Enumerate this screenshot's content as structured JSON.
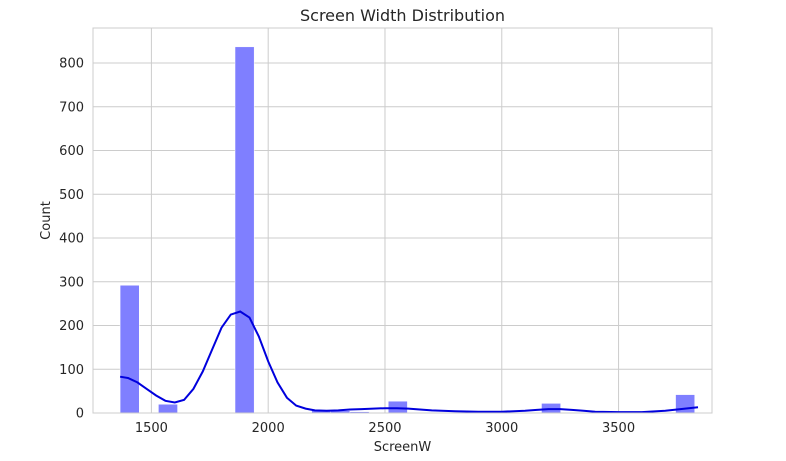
{
  "chart_data": {
    "type": "bar",
    "title": "Screen Width Distribution",
    "xlabel": "ScreenW",
    "ylabel": "Count",
    "xlim": [
      1250,
      3900
    ],
    "ylim": [
      0,
      880
    ],
    "xticks": [
      1500,
      2000,
      2500,
      3000,
      3500
    ],
    "yticks": [
      0,
      100,
      200,
      300,
      400,
      500,
      600,
      700,
      800
    ],
    "grid": true,
    "bar_color": "#7f7fff",
    "kde_color": "#0000dd",
    "bars": [
      {
        "x0": 1366,
        "x1": 1448,
        "count": 292
      },
      {
        "x0": 1530,
        "x1": 1612,
        "count": 20
      },
      {
        "x0": 1858,
        "x1": 1940,
        "count": 837
      },
      {
        "x0": 2186,
        "x1": 2268,
        "count": 6
      },
      {
        "x0": 2268,
        "x1": 2350,
        "count": 5
      },
      {
        "x0": 2350,
        "x1": 2432,
        "count": 3
      },
      {
        "x0": 2514,
        "x1": 2596,
        "count": 27
      },
      {
        "x0": 3170,
        "x1": 3252,
        "count": 22
      },
      {
        "x0": 3744,
        "x1": 3826,
        "count": 42
      }
    ],
    "kde": {
      "x": [
        1366,
        1400,
        1440,
        1480,
        1520,
        1560,
        1600,
        1640,
        1680,
        1720,
        1760,
        1800,
        1840,
        1880,
        1920,
        1960,
        2000,
        2040,
        2080,
        2120,
        2160,
        2200,
        2250,
        2300,
        2350,
        2400,
        2450,
        2500,
        2550,
        2600,
        2650,
        2700,
        2800,
        2900,
        3000,
        3100,
        3150,
        3200,
        3250,
        3300,
        3350,
        3400,
        3500,
        3600,
        3700,
        3750,
        3800,
        3840
      ],
      "y": [
        83,
        80,
        70,
        55,
        40,
        28,
        24,
        30,
        55,
        95,
        145,
        195,
        225,
        232,
        218,
        175,
        118,
        70,
        35,
        17,
        10,
        6,
        5,
        6,
        8,
        9,
        10,
        11,
        11,
        10,
        8,
        6,
        4,
        3,
        3,
        5,
        7,
        9,
        9,
        7,
        5,
        3,
        2,
        2,
        5,
        8,
        11,
        13
      ]
    }
  }
}
